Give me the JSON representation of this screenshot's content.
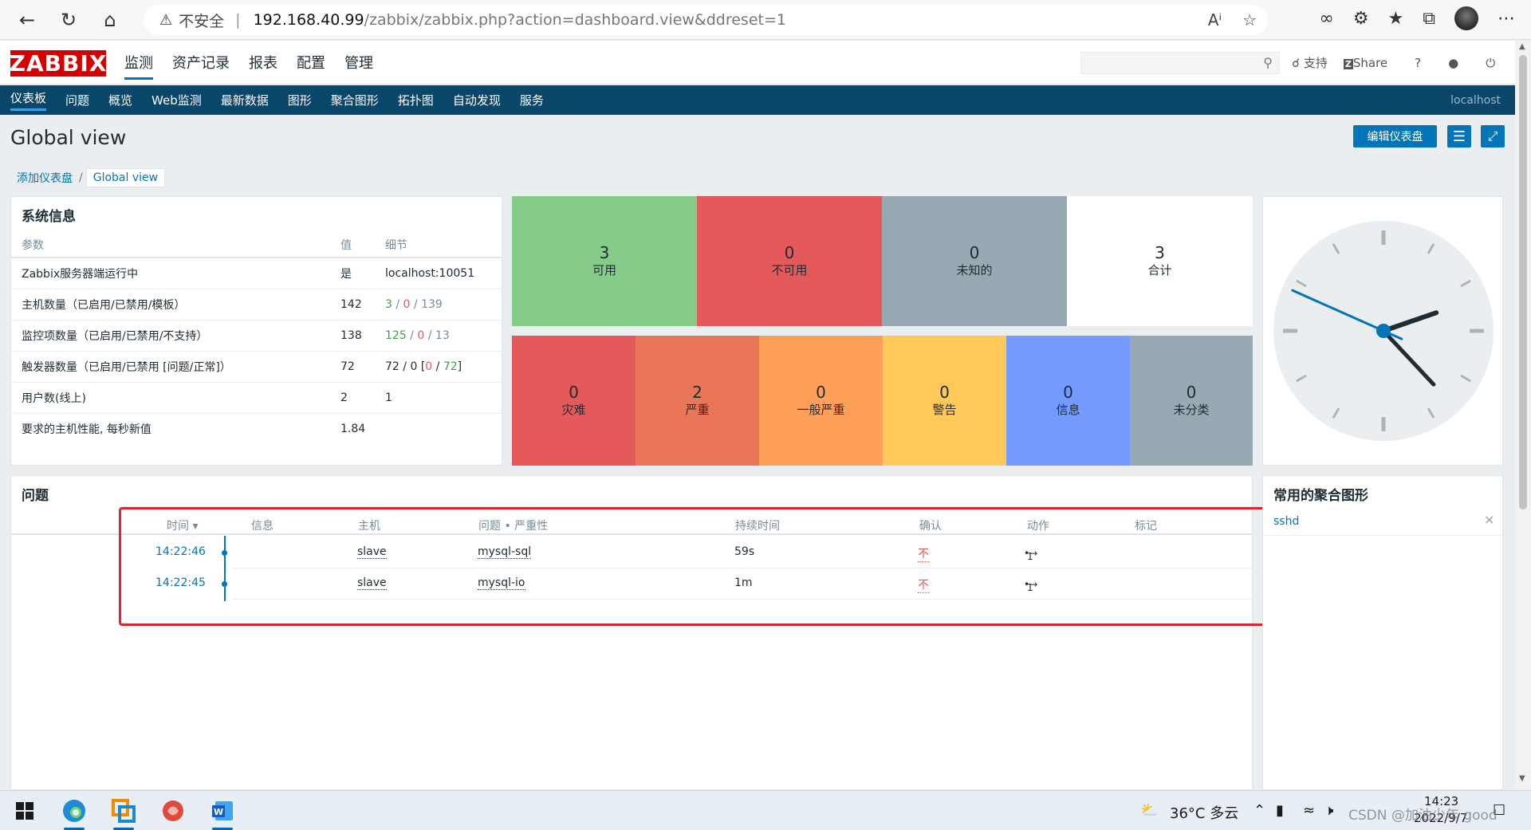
{
  "browser": {
    "insecure_label": "不安全",
    "url_host": "192.168.40.99",
    "url_path": "/zabbix/zabbix.php?action=dashboard.view&ddreset=1"
  },
  "header": {
    "logo": "ZABBIX",
    "menu": [
      "监测",
      "资产记录",
      "报表",
      "配置",
      "管理"
    ],
    "support": "支持",
    "share": "Share",
    "help": "?"
  },
  "submenu": {
    "items": [
      "仪表板",
      "问题",
      "概览",
      "Web监测",
      "最新数据",
      "图形",
      "聚合图形",
      "拓扑图",
      "自动发现",
      "服务"
    ],
    "server": "localhost"
  },
  "page": {
    "title": "Global view",
    "edit_button": "编辑仪表盘",
    "breadcrumb_parent": "添加仪表盘",
    "breadcrumb_current": "Global view"
  },
  "system_info": {
    "title": "系统信息",
    "headers": [
      "参数",
      "值",
      "细节"
    ],
    "rows": [
      {
        "param": "Zabbix服务器端运行中",
        "value": "是",
        "detail": "localhost:10051"
      },
      {
        "param": "主机数量（已启用/已禁用/模板）",
        "value": "142",
        "d1": "3",
        "d2": "0",
        "d3": "139"
      },
      {
        "param": "监控项数量（已启用/已禁用/不支持）",
        "value": "138",
        "d1": "125",
        "d2": "0",
        "d3": "13"
      },
      {
        "param": "触发器数量（已启用/已禁用 [问题/正常]）",
        "value": "72",
        "d1": "72",
        "d2": "0",
        "d3": "0",
        "d4": "72"
      },
      {
        "param": "用户数(线上)",
        "value": "2",
        "detail": "1"
      },
      {
        "param": "要求的主机性能, 每秒新值",
        "value": "1.84",
        "detail": ""
      }
    ]
  },
  "host_availability": [
    {
      "count": "3",
      "label": "可用",
      "color": "#86cc89"
    },
    {
      "count": "0",
      "label": "不可用",
      "color": "#e45959"
    },
    {
      "count": "0",
      "label": "未知的",
      "color": "#97aab3"
    },
    {
      "count": "3",
      "label": "合计",
      "color": "#ffffff"
    }
  ],
  "severity": [
    {
      "count": "0",
      "label": "灾难",
      "color": "#e45959"
    },
    {
      "count": "2",
      "label": "严重",
      "color": "#e97659"
    },
    {
      "count": "0",
      "label": "一般严重",
      "color": "#ffa059"
    },
    {
      "count": "0",
      "label": "警告",
      "color": "#ffc859"
    },
    {
      "count": "0",
      "label": "信息",
      "color": "#7499ff"
    },
    {
      "count": "0",
      "label": "未分类",
      "color": "#97aab3"
    }
  ],
  "problems": {
    "title": "问题",
    "headers": {
      "time": "时间 ▾",
      "info": "信息",
      "host": "主机",
      "problem": "问题 • 严重性",
      "duration": "持续时间",
      "ack": "确认",
      "actions": "动作",
      "tags": "标记"
    },
    "rows": [
      {
        "time": "14:22:46",
        "host": "slave",
        "problem": "mysql-sql",
        "duration": "59s",
        "ack": "不",
        "actions": "1"
      },
      {
        "time": "14:22:45",
        "host": "slave",
        "problem": "mysql-io",
        "duration": "1m",
        "ack": "不",
        "actions": "1"
      }
    ]
  },
  "favorites": {
    "title": "常用的聚合图形",
    "items": [
      "sshd"
    ]
  },
  "clock": {
    "hours": 14,
    "minutes": 22,
    "seconds": 49
  },
  "taskbar": {
    "weather": "36°C 多云",
    "time": "14:23",
    "date": "2022/9/7",
    "watermark": "CSDN @加油少年 good"
  }
}
